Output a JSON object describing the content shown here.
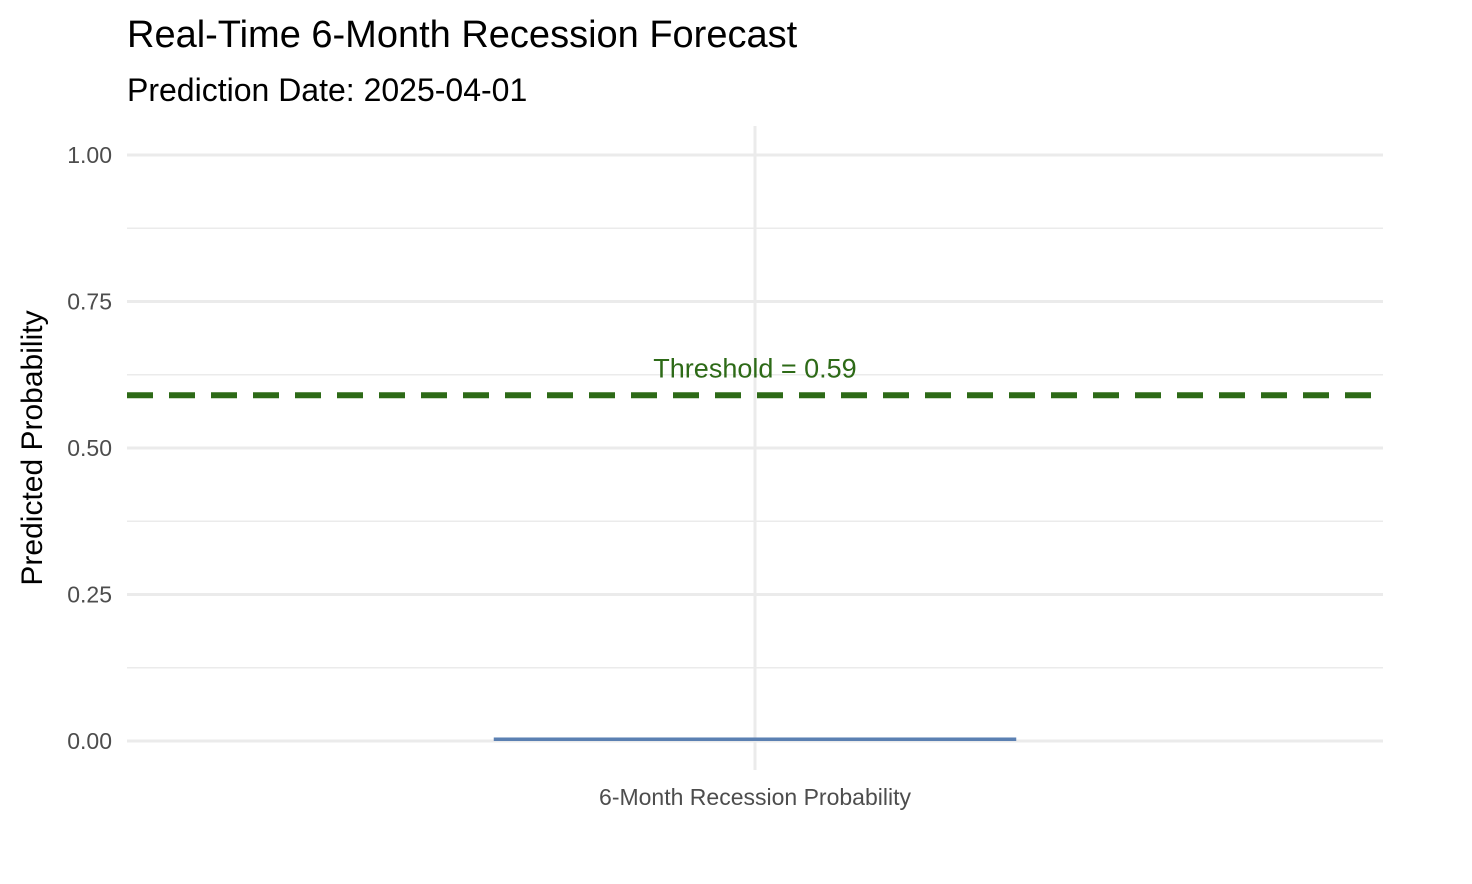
{
  "chart_data": {
    "type": "bar",
    "title": "Real-Time 6-Month Recession Forecast",
    "subtitle": "Prediction Date: 2025-04-01",
    "xlabel": "",
    "ylabel": "Predicted Probability",
    "categories": [
      "6-Month Recession Probability"
    ],
    "values": [
      0.006
    ],
    "ylim": [
      0,
      1.05
    ],
    "y_ticks": [
      0,
      0.25,
      0.5,
      0.75,
      1.0
    ],
    "y_tick_labels": [
      "0.00",
      "0.25",
      "0.50",
      "0.75",
      "1.00"
    ],
    "y_minor_ticks": [
      0.125,
      0.375,
      0.625,
      0.875
    ],
    "grid": true,
    "legend": "none",
    "threshold": {
      "value": 0.59,
      "label": "Threshold = 0.59",
      "style": "dashed",
      "color": "#2d6a17"
    },
    "bar_color": "#5b80b2",
    "grid_color": "#ebebeb"
  }
}
